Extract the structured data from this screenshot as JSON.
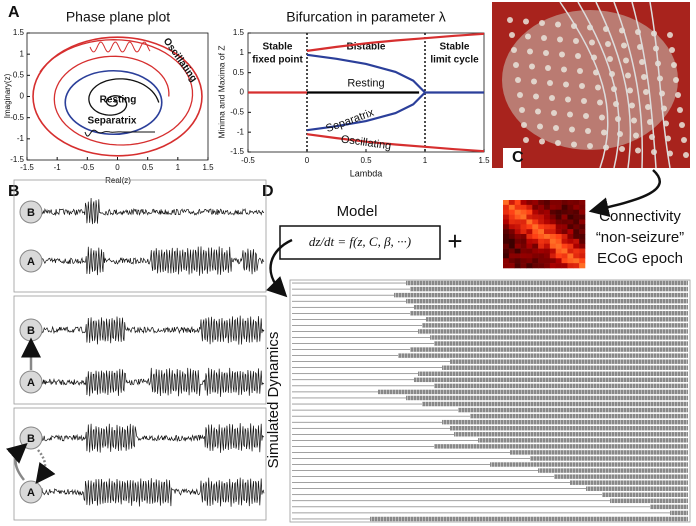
{
  "panels": {
    "a": "A",
    "b": "B",
    "c": "C",
    "d": "D"
  },
  "phase_plane": {
    "title": "Phase plane plot",
    "xlabel": "Real(z)",
    "ylabel": "Imaginary(z)",
    "xlim": [
      -1.5,
      1.5
    ],
    "ylim": [
      -1.5,
      1.5
    ],
    "xticks": [
      -1.5,
      -1,
      -0.5,
      0,
      0.5,
      1,
      1.5
    ],
    "yticks": [
      -1.5,
      -1,
      -0.5,
      0,
      0.5,
      1,
      1.5
    ],
    "labels": {
      "oscillating": "Oscillating",
      "resting": "Resting",
      "separatrix": "Separatrix"
    }
  },
  "bifurcation": {
    "type": "line",
    "title": "Bifurcation in parameter λ",
    "xlabel": "Lambda",
    "ylabel": "Minima and Maxima of Z",
    "xlim": [
      -0.5,
      1.5
    ],
    "ylim": [
      -1.5,
      1.5
    ],
    "xticks": [
      -0.5,
      0,
      0.5,
      1,
      1.5
    ],
    "yticks": [
      -1.5,
      -1,
      -0.5,
      0,
      0.5,
      1,
      1.5
    ],
    "boundaries": [
      0,
      1
    ],
    "regions": [
      [
        "Stable",
        "fixed point"
      ],
      [
        "Bistable"
      ],
      [
        "Stable",
        "limit cycle"
      ]
    ],
    "series": [
      {
        "name": "Resting",
        "color": "#000000",
        "x": [
          0,
          0.95
        ],
        "values": [
          0,
          0
        ]
      },
      {
        "name": "Separatrix",
        "color": "#2b3f9a",
        "x": [
          0,
          0.25,
          0.5,
          0.75,
          0.9,
          1,
          1,
          0,
          0.25,
          0.5,
          0.75,
          0.9,
          1,
          1,
          1,
          1.5
        ],
        "values": [
          0.95,
          0.85,
          0.72,
          0.52,
          0.3,
          0,
          null,
          -0.95,
          -0.85,
          -0.72,
          -0.52,
          -0.3,
          0,
          null,
          0,
          0
        ]
      },
      {
        "name": "Oscillating",
        "color": "#d62f2f",
        "x": [
          -0.5,
          0,
          0,
          0,
          0.25,
          0.5,
          0.75,
          1,
          1.25,
          1.5,
          1.5,
          0,
          0.25,
          0.5,
          0.75,
          1,
          1.25,
          1.5
        ],
        "values": [
          0,
          0,
          null,
          1.05,
          1.15,
          1.24,
          1.31,
          1.37,
          1.43,
          1.48,
          null,
          -1.05,
          -1.15,
          -1.24,
          -1.31,
          -1.37,
          -1.43,
          -1.48
        ]
      }
    ]
  },
  "traces": {
    "nodes": [
      [
        "B",
        "A"
      ],
      [
        "B",
        "A"
      ],
      [
        "B",
        "A"
      ]
    ]
  },
  "model": {
    "title": "Model",
    "equation": "dz/dt = f(z, C, β, ···)",
    "plus": "+"
  },
  "connectivity": {
    "lines": [
      "Connectivity",
      "“non-seizure”",
      "ECoG epoch"
    ]
  },
  "simulated_dynamics": {
    "label": "Simulated Dynamics",
    "onsets": [
      0.29,
      0.3,
      0.26,
      0.29,
      0.31,
      0.3,
      0.34,
      0.33,
      0.32,
      0.35,
      0.36,
      0.3,
      0.27,
      0.4,
      0.38,
      0.32,
      0.31,
      0.36,
      0.22,
      0.29,
      0.33,
      0.42,
      0.45,
      0.38,
      0.4,
      0.41,
      0.47,
      0.36,
      0.55,
      0.6,
      0.5,
      0.62,
      0.66,
      0.7,
      0.74,
      0.78,
      0.8,
      0.9,
      0.95,
      0.2
    ]
  }
}
